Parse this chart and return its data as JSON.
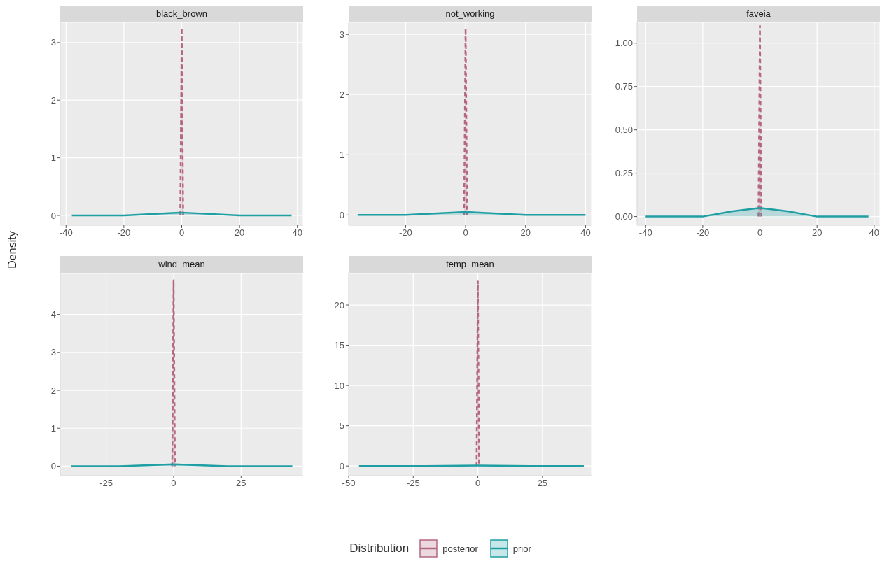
{
  "chart_data": [
    {
      "type": "area",
      "title": "black_brown",
      "ylabel": "Density",
      "legend": "bottom",
      "legend_title": "Distribution",
      "grid": true,
      "xlim": [
        -42,
        42
      ],
      "xticks": [
        -40,
        -20,
        0,
        20,
        40
      ],
      "ylim": [
        -0.17,
        3.35
      ],
      "yticks": [
        0,
        1,
        2,
        3
      ],
      "series": [
        {
          "name": "posterior",
          "color": "#b5677f",
          "line_style": "dashed",
          "x": [
            -0.5,
            0,
            0.5
          ],
          "values": [
            0,
            3.25,
            0
          ]
        },
        {
          "name": "prior",
          "color": "#1f9fa3",
          "x": [
            -38,
            -20,
            0,
            20,
            38
          ],
          "values": [
            0,
            0,
            0.05,
            0,
            0
          ]
        }
      ]
    },
    {
      "type": "area",
      "title": "not_working",
      "grid": true,
      "xlim": [
        -39,
        42
      ],
      "xticks": [
        -20,
        0,
        20,
        40
      ],
      "ylim": [
        -0.17,
        3.2
      ],
      "yticks": [
        0,
        1,
        2,
        3
      ],
      "series": [
        {
          "name": "posterior",
          "color": "#b5677f",
          "line_style": "dashed",
          "x": [
            -0.5,
            0,
            0.5
          ],
          "values": [
            0,
            3.1,
            0
          ]
        },
        {
          "name": "prior",
          "color": "#1f9fa3",
          "x": [
            -36,
            -20,
            0,
            20,
            40
          ],
          "values": [
            0,
            0,
            0.05,
            0,
            0
          ]
        }
      ]
    },
    {
      "type": "area",
      "title": "faveia",
      "grid": true,
      "xlim": [
        -43,
        42
      ],
      "xticks": [
        -40,
        -20,
        0,
        20,
        40
      ],
      "ylim": [
        -0.05,
        1.12
      ],
      "yticks": [
        {
          "value": 0,
          "label": "0.00"
        },
        {
          "value": 0.25,
          "label": "0.25"
        },
        {
          "value": 0.5,
          "label": "0.50"
        },
        {
          "value": 0.75,
          "label": "0.75"
        },
        {
          "value": 1,
          "label": "1.00"
        }
      ],
      "series": [
        {
          "name": "posterior",
          "color": "#b5677f",
          "line_style": "dashed",
          "x": [
            -0.5,
            0,
            0.5
          ],
          "values": [
            0,
            1.1,
            0
          ]
        },
        {
          "name": "prior",
          "color": "#1f9fa3",
          "x": [
            -40,
            -20,
            -10,
            0,
            10,
            20,
            38
          ],
          "values": [
            0,
            0,
            0.03,
            0.05,
            0.03,
            0,
            0
          ]
        }
      ]
    },
    {
      "type": "area",
      "title": "wind_mean",
      "grid": true,
      "xlim": [
        -42,
        48
      ],
      "xticks": [
        -25,
        0,
        25
      ],
      "ylim": [
        -0.25,
        5.1
      ],
      "yticks": [
        0,
        1,
        2,
        3,
        4
      ],
      "series": [
        {
          "name": "posterior",
          "color": "#b5677f",
          "line_style": "dashed",
          "x": [
            -0.5,
            0,
            0.5
          ],
          "values": [
            0,
            4.9,
            0
          ]
        },
        {
          "name": "prior",
          "color": "#1f9fa3",
          "x": [
            -38,
            -20,
            0,
            20,
            44
          ],
          "values": [
            0,
            0,
            0.05,
            0,
            0
          ]
        }
      ]
    },
    {
      "type": "area",
      "title": "temp_mean",
      "grid": true,
      "xlim": [
        -50,
        44
      ],
      "xticks": [
        -50,
        -25,
        0,
        25
      ],
      "ylim": [
        -1.2,
        24
      ],
      "yticks": [
        0,
        5,
        10,
        15,
        20
      ],
      "series": [
        {
          "name": "posterior",
          "color": "#b5677f",
          "line_style": "dashed",
          "x": [
            -0.5,
            0,
            0.5
          ],
          "values": [
            0,
            23,
            0
          ]
        },
        {
          "name": "prior",
          "color": "#1f9fa3",
          "x": [
            -46,
            -20,
            0,
            20,
            41
          ],
          "values": [
            0,
            0,
            0.05,
            0,
            0
          ]
        }
      ]
    }
  ]
}
